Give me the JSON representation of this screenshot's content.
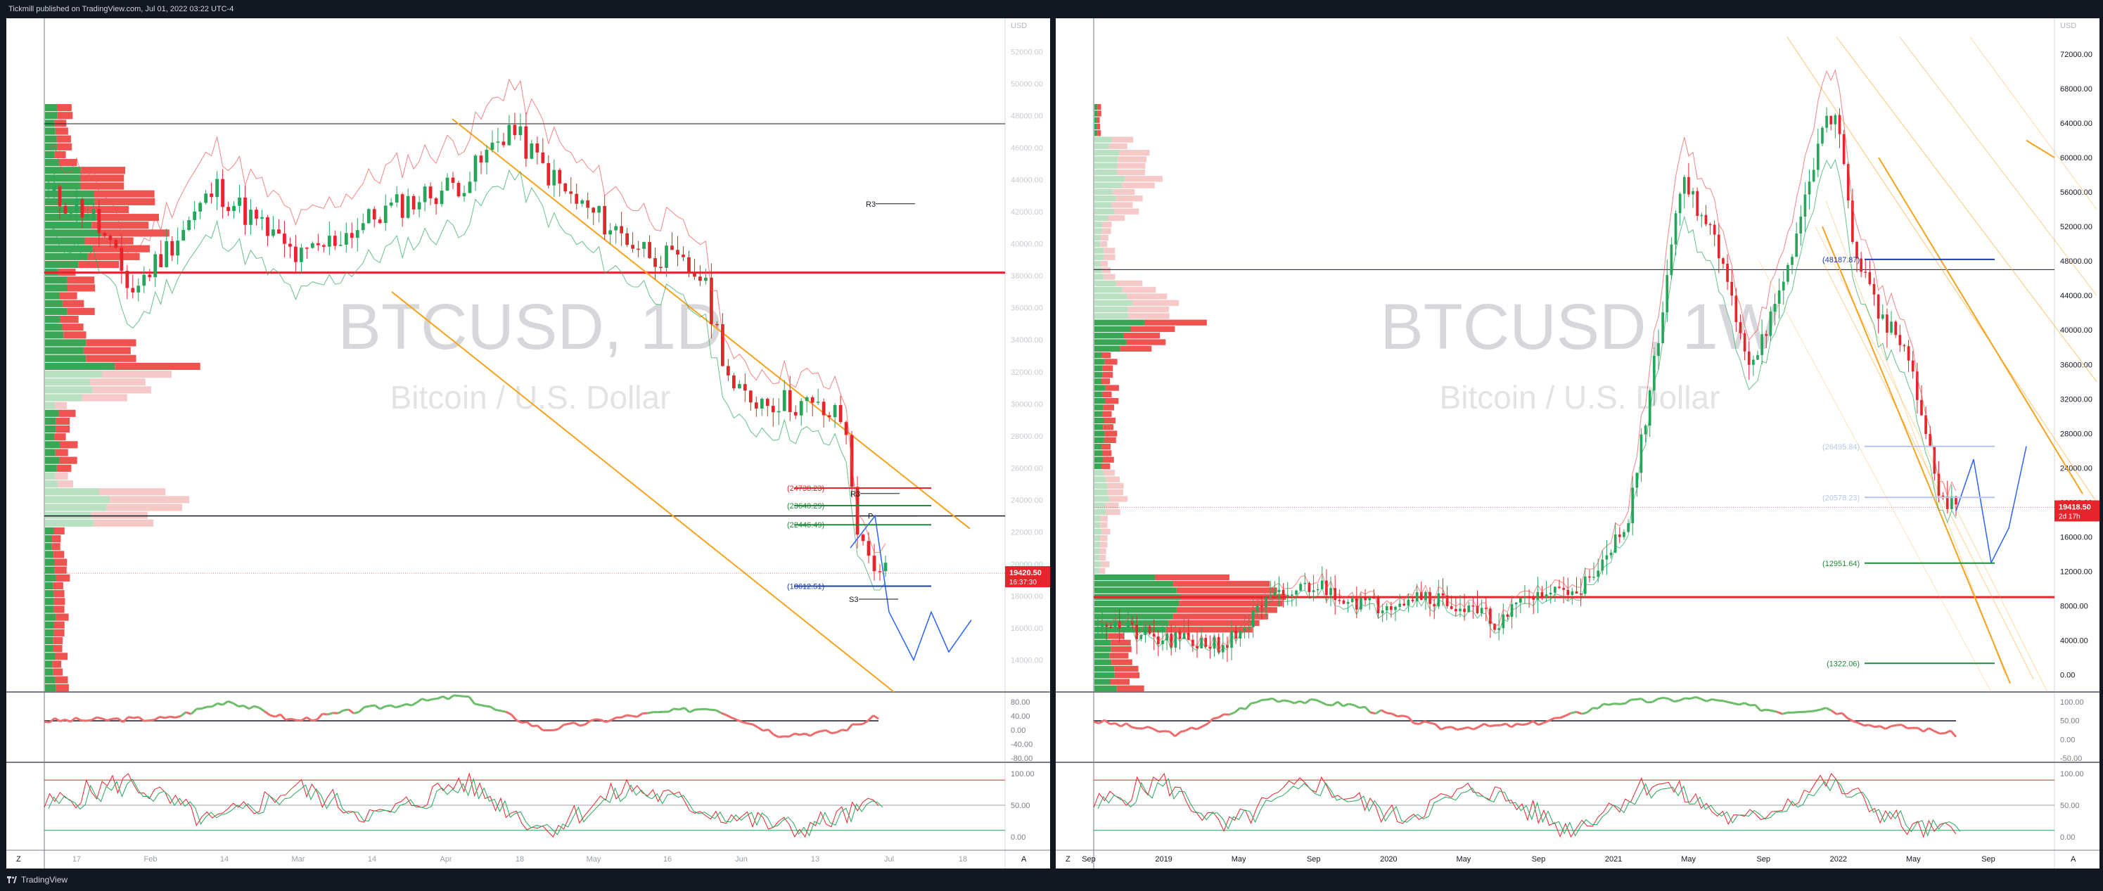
{
  "header": {
    "publisher_text": "Tickmill published on TradingView.com, Jul 01, 2022 03:22 UTC-4"
  },
  "footer": {
    "brand": "TradingView"
  },
  "colors": {
    "up": "#26a65b",
    "down": "#e5252b",
    "channel": "#f7a21b",
    "projection": "#2962ff",
    "hline": "#e5252b",
    "osc_up": "#6cbd6a",
    "osc_down": "#ef6a6a"
  },
  "chart_data": [
    {
      "type": "candlestick",
      "timeframe": "1D",
      "watermark_symbol": "BTCUSD, 1D",
      "watermark_name": "Bitcoin / U.S. Dollar",
      "currency_label": "USD",
      "ylim": [
        12000,
        54000
      ],
      "yticks": [
        "52000.00",
        "50000.00",
        "48000.00",
        "46000.00",
        "44000.00",
        "42000.00",
        "40000.00",
        "38000.00",
        "36000.00",
        "34000.00",
        "32000.00",
        "30000.00",
        "28000.00",
        "26000.00",
        "24000.00",
        "22000.00",
        "20000.00",
        "18000.00",
        "16000.00",
        "14000.00"
      ],
      "x_ticks": [
        "17",
        "Feb",
        "14",
        "Mar",
        "14",
        "Apr",
        "18",
        "May",
        "16",
        "Jun",
        "13",
        "Jul",
        "18"
      ],
      "last_price": "19420.50",
      "countdown": "16:37:30",
      "osc_ticks": [
        "80.00",
        "40.00",
        "0.00",
        "-40.00",
        "-80.00"
      ],
      "stoch_ticks": [
        "100.00",
        "50.00",
        "0.00"
      ],
      "levels": [
        {
          "label": "(24738.23)",
          "kind": "red"
        },
        {
          "label": "(23640.29)",
          "kind": "green"
        },
        {
          "label": "(22446.49)",
          "kind": "green"
        },
        {
          "label": "(18612.51)",
          "kind": "blue"
        }
      ],
      "pivots": [
        "R3",
        "R3",
        "P",
        "S3"
      ],
      "corner_label": "A",
      "z_label": "Z"
    },
    {
      "type": "candlestick",
      "timeframe": "1W",
      "watermark_symbol": "BTCUSD, 1W",
      "watermark_name": "Bitcoin / U.S. Dollar",
      "currency_label": "USD",
      "ylim": [
        -2000,
        76000
      ],
      "yticks": [
        "72000.00",
        "68000.00",
        "64000.00",
        "60000.00",
        "56000.00",
        "52000.00",
        "48000.00",
        "44000.00",
        "40000.00",
        "36000.00",
        "32000.00",
        "28000.00",
        "24000.00",
        "20000.00",
        "16000.00",
        "12000.00",
        "8000.00",
        "4000.00",
        "0.00"
      ],
      "x_ticks": [
        "Sep",
        "2019",
        "May",
        "Sep",
        "2020",
        "May",
        "Sep",
        "2021",
        "May",
        "Sep",
        "2022",
        "May",
        "Sep"
      ],
      "last_price": "19418.50",
      "countdown": "2d 17h",
      "osc_ticks": [
        "100.00",
        "50.00",
        "0.00",
        "-50.00"
      ],
      "stoch_ticks": [
        "100.00",
        "50.00",
        "0.00"
      ],
      "levels": [
        {
          "label": "(48187.87)",
          "kind": "blue"
        },
        {
          "label": "(26495.84)",
          "kind": "faint"
        },
        {
          "label": "(20578.23)",
          "kind": "faint"
        },
        {
          "label": "(12951.64)",
          "kind": "green"
        },
        {
          "label": "(1322.06)",
          "kind": "green"
        }
      ],
      "corner_label": "A",
      "z_label": "Z"
    }
  ]
}
